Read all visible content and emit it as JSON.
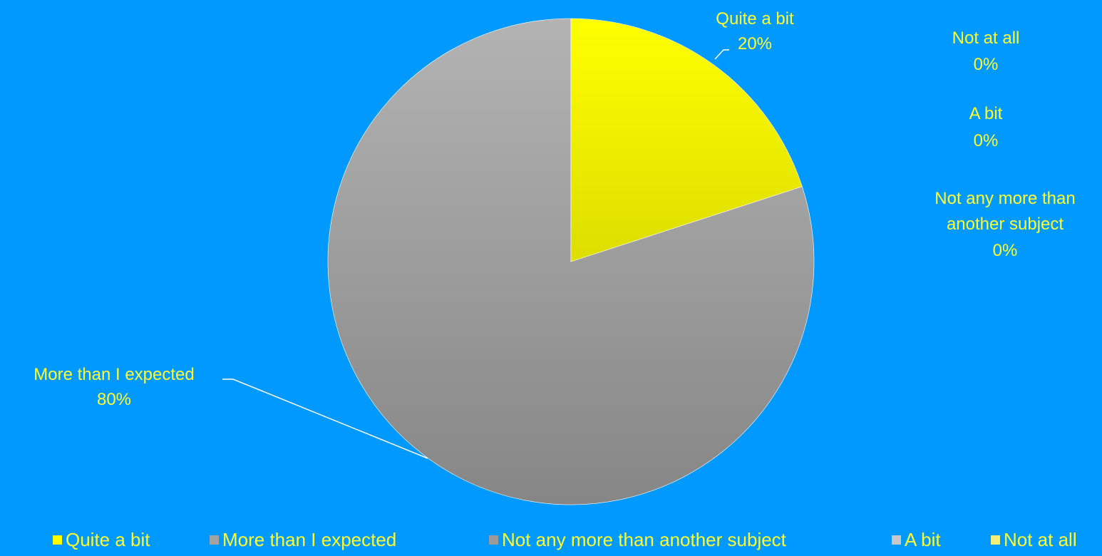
{
  "colors": {
    "background": "#0099FF",
    "label_text": "#FFFF33",
    "leader_line": "#FFFFFF",
    "slice_edge": "#FFFFFF"
  },
  "chart_data": {
    "type": "pie",
    "title": "",
    "slices": [
      {
        "label": "Quite a bit",
        "value": 20,
        "display": "20%",
        "color_top": "#FFFF00",
        "color_bottom": "#DDDD00"
      },
      {
        "label": "More than I expected",
        "value": 80,
        "display": "80%",
        "color_top": "#B3B3B3",
        "color_bottom": "#868686"
      },
      {
        "label": "Not any more than another subject",
        "value": 0,
        "display": "0%",
        "color_top": "#9A9A9A",
        "color_bottom": "#8A8A8A"
      },
      {
        "label": "A bit",
        "value": 0,
        "display": "0%",
        "color_top": "#C8C8C8",
        "color_bottom": "#B8B8B8"
      },
      {
        "label": "Not at all",
        "value": 0,
        "display": "0%",
        "color_top": "#F0F07A",
        "color_bottom": "#E0E060"
      }
    ],
    "legend": {
      "position": "bottom",
      "entries": [
        {
          "label": "Quite a bit",
          "color": "#FFFF00"
        },
        {
          "label": "More than I expected",
          "color": "#A3A3A3"
        },
        {
          "label": "Not any more than another subject",
          "color": "#9A9A9A"
        },
        {
          "label": "A bit",
          "color": "#C8C8C8"
        },
        {
          "label": "Not at all",
          "color": "#F0F07A"
        }
      ]
    }
  }
}
